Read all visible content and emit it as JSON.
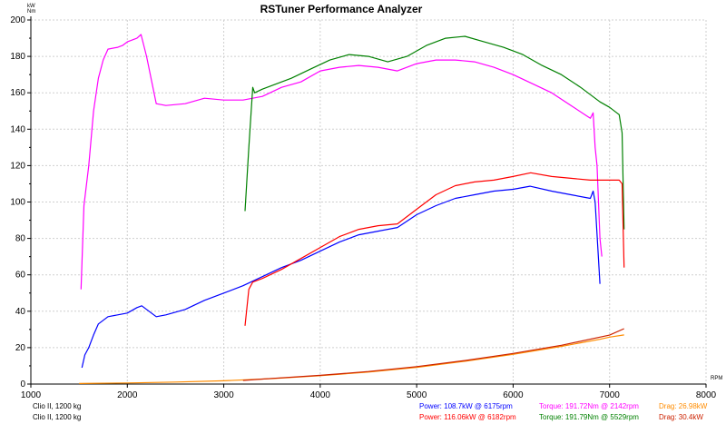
{
  "chart_data": {
    "type": "line",
    "title": "RSTuner Performance Analyzer",
    "ylabel_units": [
      "kW",
      "Nm"
    ],
    "xlabel": "RPM",
    "xlim": [
      1000,
      8000
    ],
    "ylim": [
      0,
      200
    ],
    "x_ticks": [
      1000,
      2000,
      3000,
      4000,
      5000,
      6000,
      7000,
      8000
    ],
    "y_ticks": [
      0,
      20,
      40,
      60,
      80,
      100,
      120,
      140,
      160,
      180,
      200
    ],
    "grid": true,
    "series": [
      {
        "name": "Torque (run 1)",
        "color": "#ff00ff",
        "points": [
          [
            1520,
            52
          ],
          [
            1550,
            98
          ],
          [
            1600,
            120
          ],
          [
            1650,
            150
          ],
          [
            1700,
            168
          ],
          [
            1750,
            178
          ],
          [
            1800,
            184
          ],
          [
            1900,
            185
          ],
          [
            1950,
            186
          ],
          [
            2000,
            188
          ],
          [
            2100,
            190
          ],
          [
            2142,
            192
          ],
          [
            2200,
            180
          ],
          [
            2300,
            154
          ],
          [
            2400,
            153
          ],
          [
            2600,
            154
          ],
          [
            2800,
            157
          ],
          [
            3000,
            156
          ],
          [
            3200,
            156
          ],
          [
            3400,
            158
          ],
          [
            3600,
            163
          ],
          [
            3800,
            166
          ],
          [
            4000,
            172
          ],
          [
            4200,
            174
          ],
          [
            4400,
            175
          ],
          [
            4600,
            174
          ],
          [
            4800,
            172
          ],
          [
            5000,
            176
          ],
          [
            5200,
            178
          ],
          [
            5400,
            178
          ],
          [
            5600,
            177
          ],
          [
            5800,
            174
          ],
          [
            6000,
            170
          ],
          [
            6200,
            165
          ],
          [
            6400,
            160
          ],
          [
            6600,
            153
          ],
          [
            6800,
            146
          ],
          [
            6830,
            149
          ],
          [
            6850,
            130
          ],
          [
            6870,
            120
          ],
          [
            6900,
            80
          ],
          [
            6920,
            70
          ]
        ]
      },
      {
        "name": "Torque (run 2)",
        "color": "#008000",
        "points": [
          [
            3220,
            95
          ],
          [
            3260,
            130
          ],
          [
            3300,
            163
          ],
          [
            3320,
            160
          ],
          [
            3400,
            162
          ],
          [
            3500,
            164
          ],
          [
            3700,
            168
          ],
          [
            3900,
            173
          ],
          [
            4100,
            178
          ],
          [
            4300,
            181
          ],
          [
            4500,
            180
          ],
          [
            4700,
            177
          ],
          [
            4900,
            180
          ],
          [
            5100,
            186
          ],
          [
            5300,
            190
          ],
          [
            5500,
            191
          ],
          [
            5700,
            188
          ],
          [
            5900,
            185
          ],
          [
            6100,
            181
          ],
          [
            6300,
            175
          ],
          [
            6500,
            170
          ],
          [
            6700,
            163
          ],
          [
            6900,
            155
          ],
          [
            7000,
            152
          ],
          [
            7100,
            148
          ],
          [
            7130,
            138
          ],
          [
            7150,
            85
          ]
        ]
      },
      {
        "name": "Power (run 1)",
        "color": "#0000ff",
        "points": [
          [
            1530,
            9
          ],
          [
            1560,
            16
          ],
          [
            1600,
            20
          ],
          [
            1650,
            27
          ],
          [
            1700,
            33
          ],
          [
            1800,
            37
          ],
          [
            1900,
            38
          ],
          [
            2000,
            39
          ],
          [
            2100,
            42
          ],
          [
            2150,
            43
          ],
          [
            2200,
            41
          ],
          [
            2300,
            37
          ],
          [
            2400,
            38
          ],
          [
            2600,
            41
          ],
          [
            2800,
            46
          ],
          [
            3000,
            50
          ],
          [
            3200,
            54
          ],
          [
            3400,
            59
          ],
          [
            3600,
            64
          ],
          [
            3800,
            68
          ],
          [
            4000,
            73
          ],
          [
            4200,
            78
          ],
          [
            4400,
            82
          ],
          [
            4600,
            84
          ],
          [
            4800,
            86
          ],
          [
            5000,
            93
          ],
          [
            5200,
            98
          ],
          [
            5400,
            102
          ],
          [
            5600,
            104
          ],
          [
            5800,
            106
          ],
          [
            6000,
            107
          ],
          [
            6175,
            108.7
          ],
          [
            6400,
            106
          ],
          [
            6600,
            104
          ],
          [
            6800,
            102
          ],
          [
            6830,
            106
          ],
          [
            6850,
            100
          ],
          [
            6900,
            55
          ]
        ]
      },
      {
        "name": "Power (run 2)",
        "color": "#ff0000",
        "points": [
          [
            3220,
            32
          ],
          [
            3260,
            52
          ],
          [
            3300,
            56
          ],
          [
            3400,
            58
          ],
          [
            3600,
            63
          ],
          [
            3800,
            69
          ],
          [
            4000,
            75
          ],
          [
            4200,
            81
          ],
          [
            4400,
            85
          ],
          [
            4600,
            87
          ],
          [
            4800,
            88
          ],
          [
            5000,
            96
          ],
          [
            5200,
            104
          ],
          [
            5400,
            109
          ],
          [
            5600,
            111
          ],
          [
            5800,
            112
          ],
          [
            6000,
            114
          ],
          [
            6182,
            116.06
          ],
          [
            6400,
            114
          ],
          [
            6600,
            113
          ],
          [
            6800,
            112
          ],
          [
            7000,
            112
          ],
          [
            7100,
            112
          ],
          [
            7130,
            110
          ],
          [
            7150,
            64
          ]
        ]
      },
      {
        "name": "Drag (run 1)",
        "color": "#ff8c00",
        "points": [
          [
            1500,
            0.3
          ],
          [
            2000,
            0.6
          ],
          [
            2500,
            1.1
          ],
          [
            3000,
            1.8
          ],
          [
            3500,
            3.0
          ],
          [
            4000,
            4.6
          ],
          [
            4500,
            6.6
          ],
          [
            5000,
            9.2
          ],
          [
            5500,
            12.5
          ],
          [
            6000,
            16.3
          ],
          [
            6500,
            20.7
          ],
          [
            6900,
            24.6
          ],
          [
            7000,
            25.8
          ],
          [
            7150,
            26.98
          ]
        ]
      },
      {
        "name": "Drag (run 2)",
        "color": "#cc2200",
        "points": [
          [
            3200,
            2.0
          ],
          [
            3500,
            3.1
          ],
          [
            4000,
            4.8
          ],
          [
            4500,
            6.9
          ],
          [
            5000,
            9.6
          ],
          [
            5500,
            12.9
          ],
          [
            6000,
            16.8
          ],
          [
            6500,
            21.3
          ],
          [
            7000,
            26.9
          ],
          [
            7150,
            30.4
          ]
        ]
      }
    ]
  },
  "footer": {
    "rows": [
      {
        "vehicle": "Clio II, 1200 kg",
        "power": {
          "text": "Power: 108.7kW @ 6175rpm",
          "color": "#0000ff"
        },
        "torque": {
          "text": "Torque: 191.72Nm @ 2142rpm",
          "color": "#ff00ff"
        },
        "drag": {
          "text": "Drag: 26.98kW",
          "color": "#ff8c00"
        }
      },
      {
        "vehicle": "Clio II, 1200 kg",
        "power": {
          "text": "Power: 116.06kW @ 6182rpm",
          "color": "#ff0000"
        },
        "torque": {
          "text": "Torque: 191.79Nm @ 5529rpm",
          "color": "#008000"
        },
        "drag": {
          "text": "Drag: 30.4kW",
          "color": "#cc2200"
        }
      }
    ]
  }
}
